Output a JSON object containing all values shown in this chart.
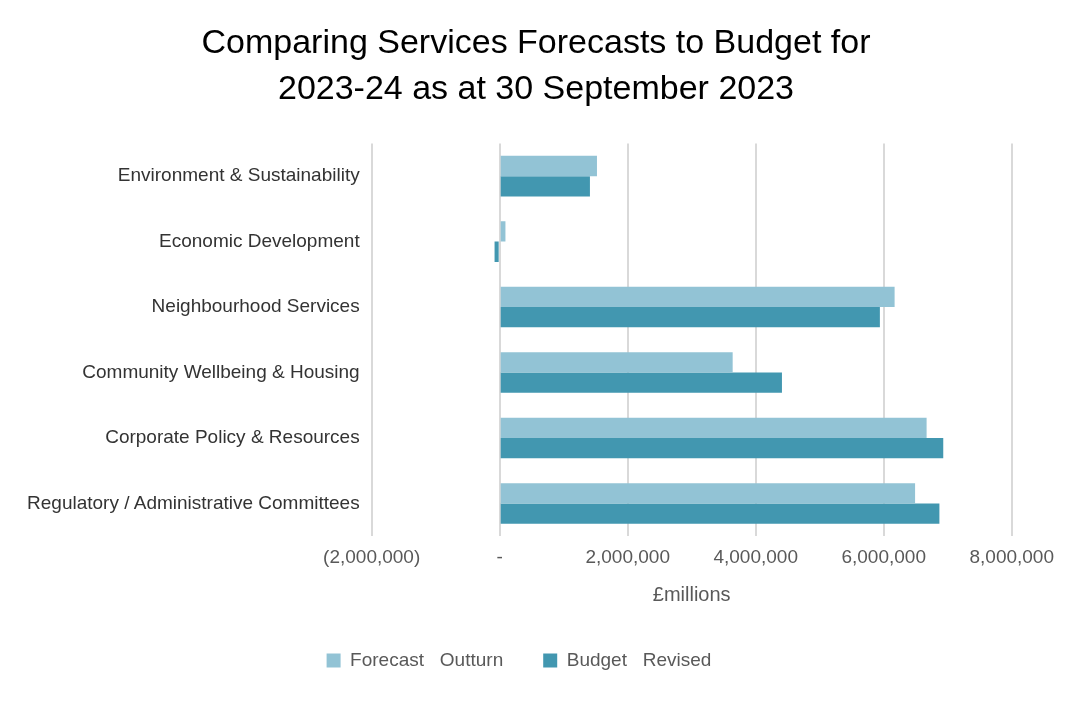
{
  "chart_data": {
    "type": "bar",
    "orientation": "horizontal",
    "title": "Comparing Services Forecasts to Budget for 2023-24 as at 30 September 2023",
    "xlabel": "£millions",
    "categories": [
      "Environment & Sustainability",
      "Economic Development",
      "Neighbourhood Services",
      "Community Wellbeing & Housing",
      "Corporate Policy & Resources",
      "Regulatory / Administrative Committees"
    ],
    "series": [
      {
        "name": "Forecast   Outturn",
        "color": "#92c3d5",
        "values": [
          1520000,
          90000,
          6170000,
          3640000,
          6670000,
          6490000
        ]
      },
      {
        "name": "Budget   Revised",
        "color": "#4297b0",
        "values": [
          1410000,
          -80000,
          5940000,
          4410000,
          6930000,
          6870000
        ]
      }
    ],
    "xlim": [
      -2000000,
      8000000
    ],
    "xticks": [
      {
        "value": -2000000,
        "label": "(2,000,000)"
      },
      {
        "value": 0,
        "label": "-"
      },
      {
        "value": 2000000,
        "label": "2,000,000"
      },
      {
        "value": 4000000,
        "label": "4,000,000"
      },
      {
        "value": 6000000,
        "label": "6,000,000"
      },
      {
        "value": 8000000,
        "label": "8,000,000"
      }
    ],
    "grid": "x",
    "legend": "bottom"
  }
}
